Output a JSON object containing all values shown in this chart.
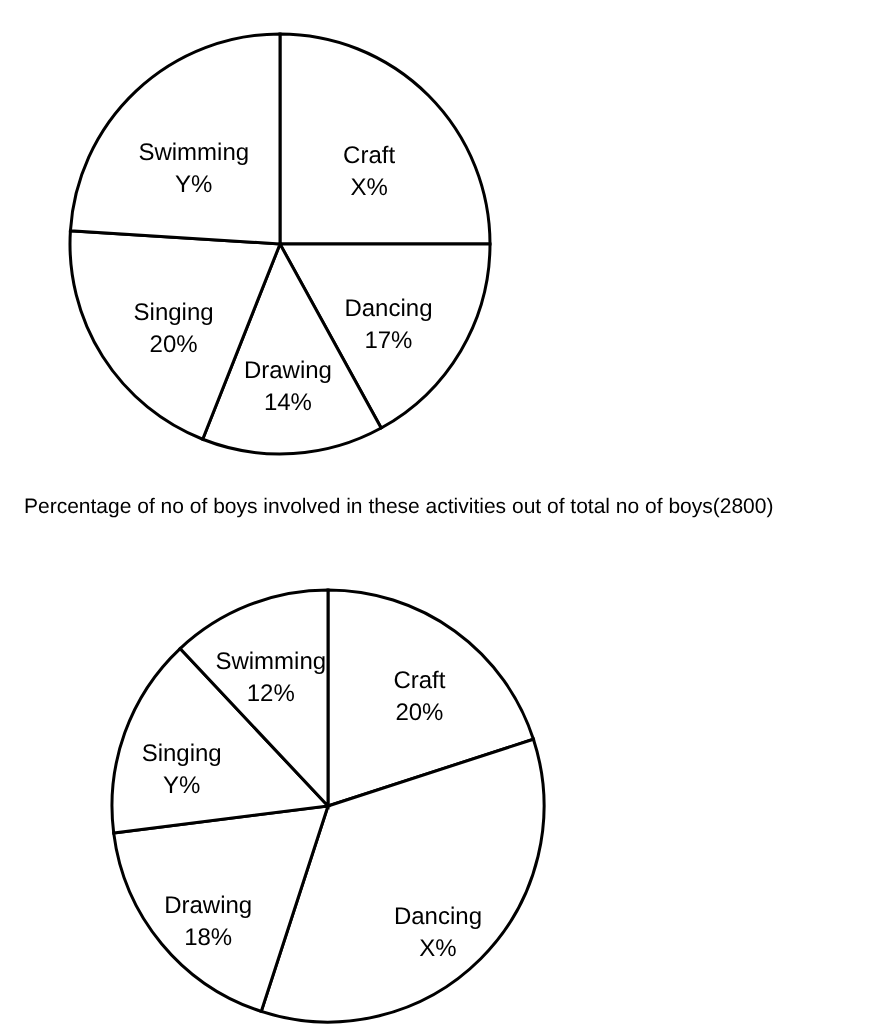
{
  "chart_data": [
    {
      "type": "pie",
      "categories": [
        "Craft",
        "Dancing",
        "Drawing",
        "Singing",
        "Swimming"
      ],
      "values": [
        25,
        17,
        14,
        20,
        24
      ],
      "value_labels": [
        "X%",
        "17%",
        "14%",
        "20%",
        "Y%"
      ],
      "colors": [
        "#ffffff",
        "#ffffff",
        "#ffffff",
        "#ffffff",
        "#ffffff"
      ],
      "legend": false
    },
    {
      "type": "pie",
      "title": "Percentage of no of boys involved in these activities out of total no of boys(2800)",
      "categories": [
        "Craft",
        "Dancing",
        "Drawing",
        "Singing",
        "Swimming"
      ],
      "values": [
        20,
        35,
        18,
        15,
        12
      ],
      "value_labels": [
        "20%",
        "X%",
        "18%",
        "Y%",
        "12%"
      ],
      "colors": [
        "#ffffff",
        "#ffffff",
        "#ffffff",
        "#ffffff",
        "#ffffff"
      ],
      "legend": false
    }
  ]
}
